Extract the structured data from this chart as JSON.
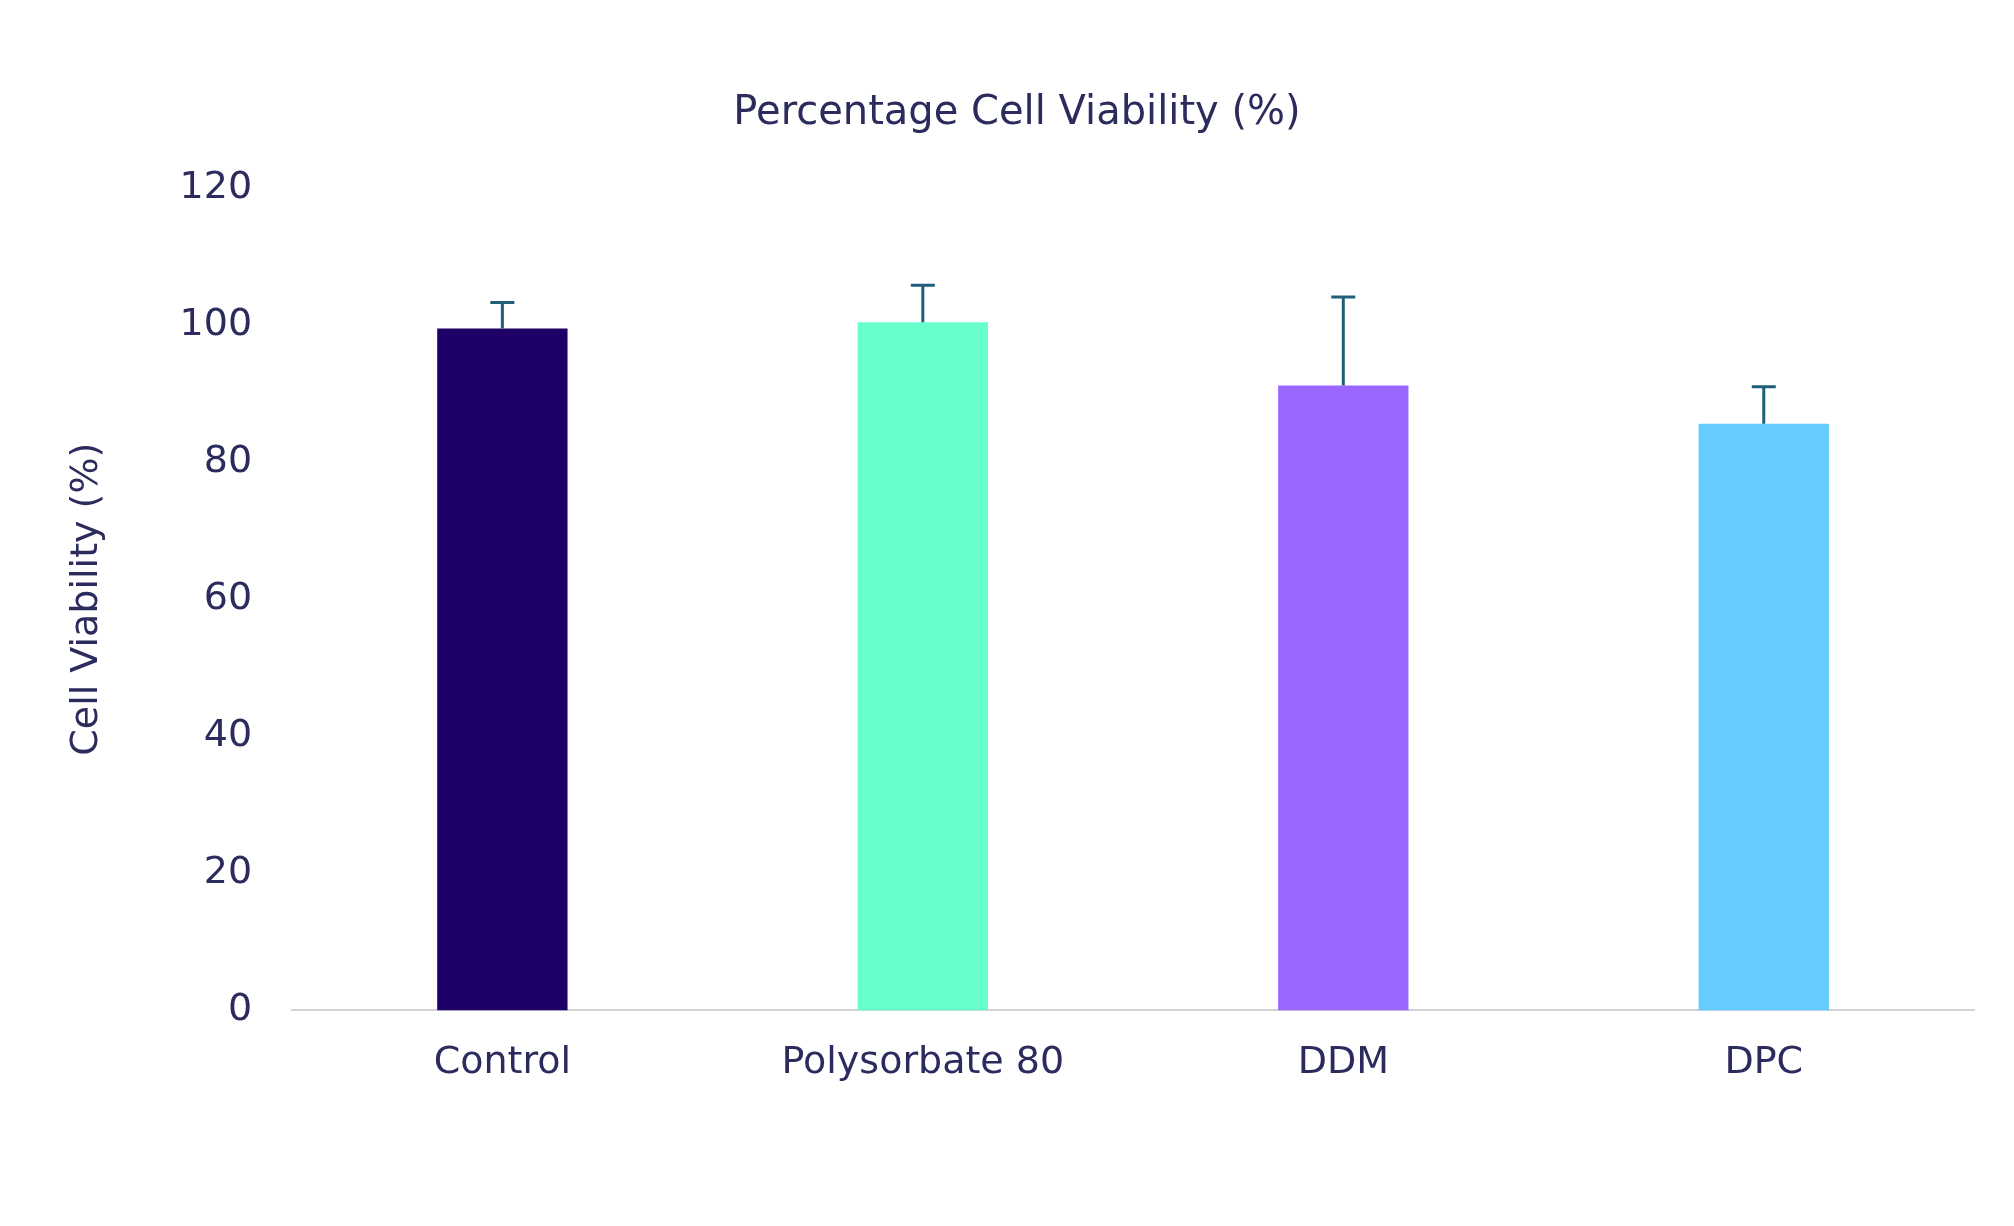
{
  "chart_data": {
    "type": "bar",
    "title": "Percentage Cell Viability (%)",
    "ylabel": "Cell Viability (%)",
    "categories": [
      "Control",
      "Polysorbate 80",
      "DDM",
      "DPC"
    ],
    "values": [
      99.5,
      100.4,
      91.2,
      85.6
    ],
    "colors": [
      "#1f0066",
      "#66ffcc",
      "#9966ff",
      "#66ccff"
    ],
    "errors": [
      [
        99.5,
        103.3
      ],
      [
        100.4,
        105.8
      ],
      [
        91.2,
        104.1
      ],
      [
        85.6,
        91
      ]
    ],
    "ylim": [
      0,
      120
    ],
    "yticks": [
      0,
      20,
      40,
      60,
      80,
      100,
      120
    ],
    "grid": false,
    "legend": false
  }
}
